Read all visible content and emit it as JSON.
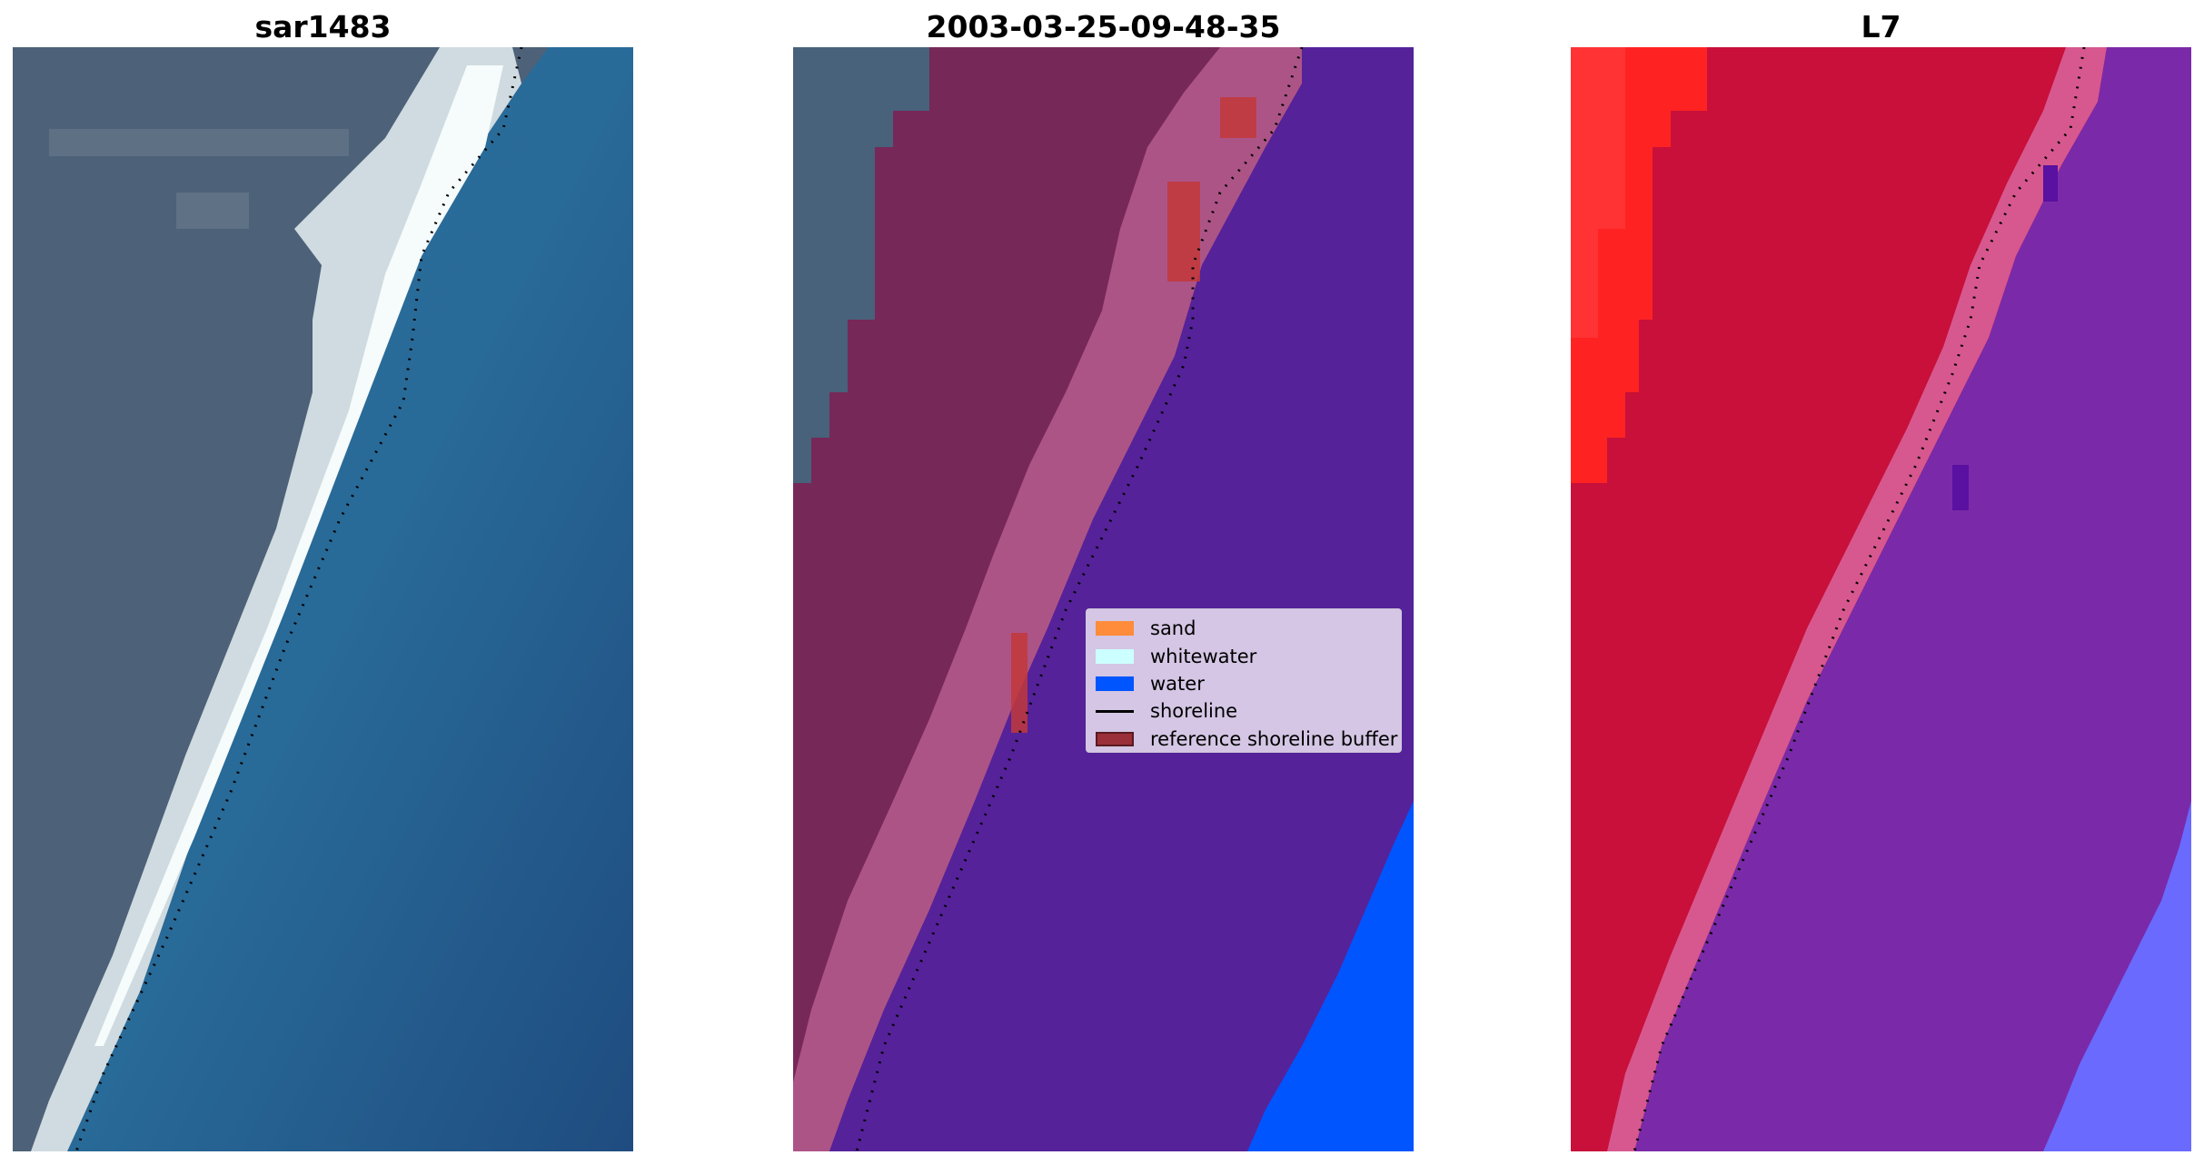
{
  "panels": [
    {
      "title": "sar1483"
    },
    {
      "title": "2003-03-25-09-48-35"
    },
    {
      "title": "L7"
    }
  ],
  "legend": {
    "items": [
      {
        "label": "sand",
        "color": "#ff8c3a"
      },
      {
        "label": "whitewater",
        "color": "#ccffff"
      },
      {
        "label": "water",
        "color": "#0055ff"
      },
      {
        "label": "shoreline",
        "color": "#000000"
      },
      {
        "label": "reference shoreline buffer",
        "color": "#9a2f3a"
      }
    ]
  },
  "colors": {
    "land_rgb": "#4a6078",
    "white_beach": "#e8f0f0",
    "sea_rgb": "#2a6a9a",
    "classified_land": "#762858",
    "classified_beach": "#b85a8c",
    "classified_water_overlay": "#55229a",
    "classified_water": "#0055ff",
    "buffer_red": "#c2383a",
    "mndwi_land": "#c8103a",
    "mndwi_bright": "#ff2222",
    "mndwi_water": "#7a2aa8",
    "mndwi_deep": "#6a6aff"
  }
}
